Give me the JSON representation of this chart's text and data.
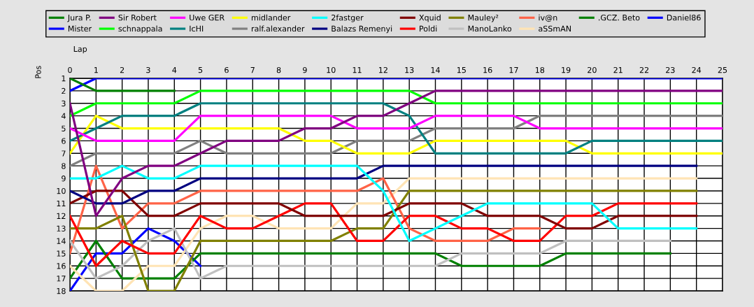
{
  "chart_data": {
    "type": "line",
    "xlabel": "Lap",
    "ylabel": "Pos",
    "x": [
      0,
      1,
      2,
      3,
      4,
      5,
      6,
      7,
      8,
      9,
      10,
      11,
      12,
      13,
      14,
      15,
      16,
      17,
      18,
      19,
      20,
      21,
      22,
      23,
      24,
      25
    ],
    "xlim": [
      0,
      25
    ],
    "xticks": [
      0,
      1,
      2,
      3,
      4,
      5,
      6,
      7,
      8,
      9,
      10,
      11,
      12,
      13,
      14,
      15,
      16,
      17,
      18,
      19,
      20,
      21,
      22,
      23,
      24,
      25
    ],
    "ylim": [
      18,
      1
    ],
    "yticks": [
      1,
      2,
      3,
      4,
      5,
      6,
      7,
      8,
      9,
      10,
      11,
      12,
      13,
      14,
      15,
      16,
      17,
      18
    ],
    "grid": true,
    "legend": "top",
    "series": [
      {
        "name": "Jura P.",
        "color": "#008000",
        "values": [
          1,
          2,
          2,
          2,
          2,
          null,
          null,
          null,
          null,
          null,
          null,
          null,
          null,
          null,
          null,
          null,
          null,
          null,
          null,
          null,
          null,
          null,
          null,
          null,
          null,
          null
        ]
      },
      {
        "name": "Mister",
        "color": "#0000ff",
        "values": [
          2,
          1,
          1,
          1,
          1,
          1,
          1,
          1,
          1,
          1,
          1,
          1,
          1,
          1,
          1,
          1,
          1,
          1,
          1,
          1,
          1,
          1,
          1,
          1,
          1,
          1
        ]
      },
      {
        "name": "Sir Robert",
        "color": "#800080",
        "values": [
          3,
          12,
          9,
          8,
          8,
          7,
          6,
          6,
          6,
          5,
          5,
          4,
          4,
          3,
          2,
          2,
          2,
          2,
          2,
          2,
          2,
          2,
          2,
          2,
          2,
          2
        ]
      },
      {
        "name": "schnappala",
        "color": "#00ff00",
        "values": [
          4,
          3,
          3,
          3,
          3,
          2,
          2,
          2,
          2,
          2,
          2,
          2,
          2,
          2,
          3,
          3,
          3,
          3,
          3,
          3,
          3,
          3,
          3,
          3,
          3,
          3
        ]
      },
      {
        "name": "Uwe GER",
        "color": "#ff00ff",
        "values": [
          5,
          6,
          6,
          6,
          6,
          4,
          4,
          4,
          4,
          4,
          4,
          5,
          5,
          5,
          4,
          4,
          4,
          4,
          5,
          5,
          5,
          5,
          5,
          5,
          5,
          5
        ]
      },
      {
        "name": "IcHI",
        "color": "#008080",
        "values": [
          6,
          5,
          4,
          4,
          4,
          3,
          3,
          3,
          3,
          3,
          3,
          3,
          3,
          4,
          7,
          7,
          7,
          7,
          7,
          7,
          6,
          6,
          6,
          6,
          6,
          6
        ]
      },
      {
        "name": "midlander",
        "color": "#ffff00",
        "values": [
          7,
          4,
          5,
          5,
          5,
          5,
          5,
          5,
          5,
          6,
          6,
          7,
          7,
          7,
          6,
          6,
          6,
          6,
          6,
          6,
          7,
          7,
          7,
          7,
          7,
          7
        ]
      },
      {
        "name": "ralf.alexander",
        "color": "#808080",
        "values": [
          8,
          7,
          7,
          7,
          7,
          6,
          7,
          7,
          7,
          7,
          7,
          6,
          6,
          6,
          5,
          5,
          5,
          5,
          4,
          4,
          4,
          4,
          4,
          4,
          4,
          4
        ]
      },
      {
        "name": "2fastger",
        "color": "#00ffff",
        "values": [
          9,
          9,
          8,
          9,
          9,
          8,
          8,
          8,
          8,
          8,
          8,
          8,
          10,
          14,
          13,
          12,
          11,
          11,
          11,
          11,
          11,
          13,
          13,
          13,
          13,
          null
        ]
      },
      {
        "name": "Balazs Remenyi",
        "color": "#000080",
        "values": [
          10,
          11,
          11,
          10,
          10,
          9,
          9,
          9,
          9,
          9,
          9,
          9,
          8,
          8,
          8,
          8,
          8,
          8,
          8,
          8,
          8,
          8,
          8,
          8,
          8,
          null
        ]
      },
      {
        "name": "Xquid",
        "color": "#800000",
        "values": [
          11,
          10,
          10,
          12,
          12,
          11,
          11,
          11,
          11,
          12,
          12,
          12,
          12,
          11,
          11,
          11,
          12,
          12,
          12,
          13,
          13,
          12,
          12,
          12,
          12,
          null
        ]
      },
      {
        "name": "Poldi",
        "color": "#ff0000",
        "values": [
          12,
          16,
          14,
          15,
          15,
          12,
          13,
          13,
          12,
          11,
          11,
          14,
          14,
          12,
          12,
          13,
          13,
          14,
          14,
          12,
          12,
          11,
          11,
          11,
          11,
          null
        ]
      },
      {
        "name": "Mauley²",
        "color": "#808000",
        "values": [
          13,
          13,
          12,
          18,
          18,
          14,
          14,
          14,
          14,
          14,
          14,
          13,
          13,
          10,
          10,
          10,
          10,
          10,
          10,
          10,
          10,
          10,
          10,
          10,
          10,
          null
        ]
      },
      {
        "name": "ManoLanko",
        "color": "#c0c0c0",
        "values": [
          14,
          17,
          16,
          14,
          13,
          17,
          16,
          16,
          16,
          16,
          16,
          16,
          16,
          16,
          16,
          15,
          15,
          15,
          15,
          14,
          14,
          14,
          14,
          14,
          null,
          null
        ]
      },
      {
        "name": "iv@n",
        "color": "#ff6347",
        "values": [
          15,
          8,
          13,
          11,
          11,
          10,
          10,
          10,
          10,
          10,
          10,
          10,
          9,
          13,
          14,
          14,
          14,
          13,
          13,
          null,
          null,
          null,
          null,
          null,
          null,
          null
        ]
      },
      {
        "name": "aSSmAN",
        "color": "#ffe4b5",
        "values": [
          16,
          18,
          18,
          16,
          16,
          13,
          12,
          12,
          13,
          13,
          13,
          11,
          11,
          9,
          9,
          9,
          9,
          9,
          9,
          9,
          9,
          9,
          9,
          9,
          9,
          null
        ]
      },
      {
        "name": ".GCZ. Beto",
        "color": "#008000",
        "values": [
          17,
          14,
          17,
          17,
          17,
          15,
          15,
          15,
          15,
          15,
          15,
          15,
          15,
          15,
          15,
          16,
          16,
          16,
          16,
          15,
          15,
          15,
          15,
          15,
          null,
          null
        ]
      },
      {
        "name": "Daniel86",
        "color": "#0000ff",
        "values": [
          18,
          15,
          15,
          13,
          14,
          16,
          null,
          null,
          null,
          null,
          null,
          null,
          null,
          null,
          null,
          null,
          null,
          null,
          null,
          null,
          null,
          null,
          null,
          null,
          null,
          null
        ]
      }
    ]
  }
}
